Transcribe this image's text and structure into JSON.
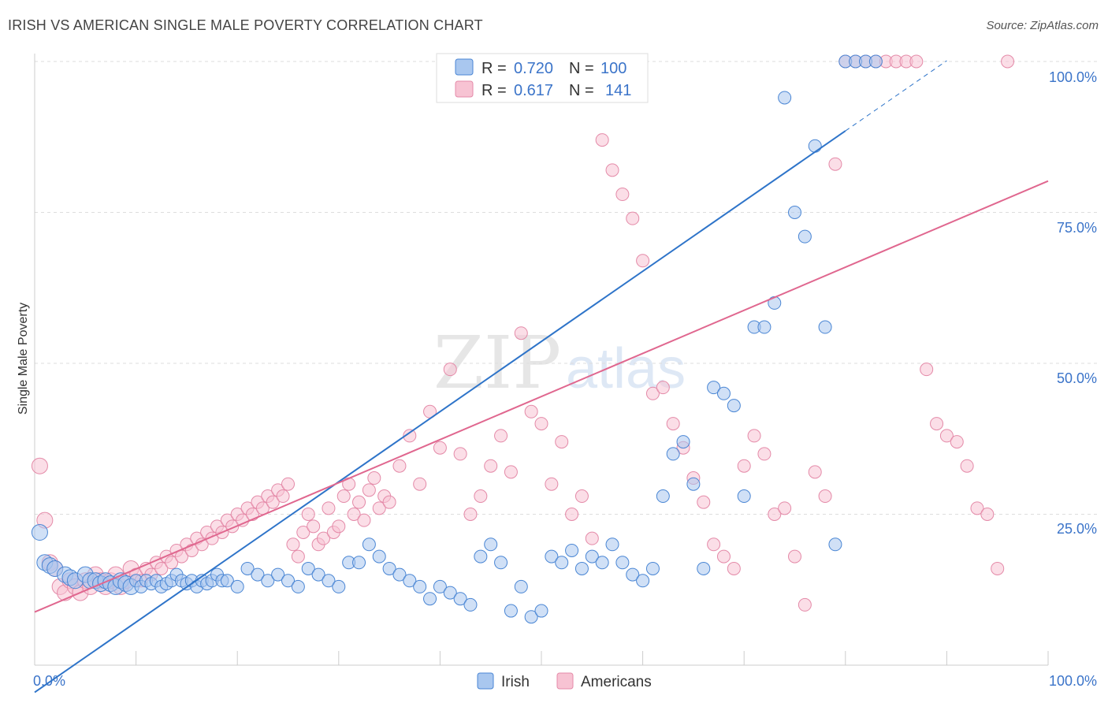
{
  "header": {
    "title": "IRISH VS AMERICAN SINGLE MALE POVERTY CORRELATION CHART",
    "source": "Source: ZipAtlas.com"
  },
  "watermark": {
    "zip": "ZIP",
    "atlas": "atlas"
  },
  "colors": {
    "irish_fill": "#a9c7ef",
    "irish_stroke": "#4a86d4",
    "irish_line": "#2e74c9",
    "american_fill": "#f7c3d3",
    "american_stroke": "#e48aa8",
    "american_line": "#e0678f",
    "tick": "#3b74c9",
    "grid": "#dddddd"
  },
  "stats": {
    "irish": {
      "r_label": "R =",
      "r": "0.720",
      "n_label": "N =",
      "n": "100"
    },
    "americans": {
      "r_label": "R =",
      "r": "0.617",
      "n_label": "N =",
      "n": "141"
    }
  },
  "chart_data": {
    "type": "scatter",
    "title": "IRISH VS AMERICAN SINGLE MALE POVERTY CORRELATION CHART",
    "xlabel": "",
    "ylabel": "Single Male Poverty",
    "xlim": [
      0,
      100
    ],
    "ylim": [
      0,
      100
    ],
    "x_tick_labels": [
      "0.0%",
      "100.0%"
    ],
    "y_tick_labels": [
      "25.0%",
      "50.0%",
      "75.0%",
      "100.0%"
    ],
    "y_ticks": [
      25,
      50,
      75,
      100
    ],
    "grid": true,
    "legend": [
      "Irish",
      "Americans"
    ],
    "series": [
      {
        "name": "Irish",
        "trend": {
          "x0": 0,
          "y0": -4.5,
          "x1": 80,
          "y1": 88.5,
          "dash_to_x": 90
        },
        "points": [
          [
            0.5,
            22
          ],
          [
            1,
            17
          ],
          [
            1.5,
            16.5
          ],
          [
            2,
            16
          ],
          [
            3,
            15
          ],
          [
            3.5,
            14.5
          ],
          [
            4,
            14
          ],
          [
            5,
            15
          ],
          [
            5.5,
            14
          ],
          [
            6,
            14
          ],
          [
            6.5,
            13.5
          ],
          [
            7,
            14
          ],
          [
            7.5,
            13.5
          ],
          [
            8,
            13
          ],
          [
            8.5,
            14
          ],
          [
            9,
            13.5
          ],
          [
            9.5,
            13
          ],
          [
            10,
            14
          ],
          [
            10.5,
            13
          ],
          [
            11,
            14
          ],
          [
            11.5,
            13.5
          ],
          [
            12,
            14
          ],
          [
            12.5,
            13
          ],
          [
            13,
            13.5
          ],
          [
            13.5,
            14
          ],
          [
            14,
            15
          ],
          [
            14.5,
            14
          ],
          [
            15,
            13.5
          ],
          [
            15.5,
            14
          ],
          [
            16,
            13
          ],
          [
            16.5,
            14
          ],
          [
            17,
            13.5
          ],
          [
            17.5,
            14
          ],
          [
            18,
            15
          ],
          [
            18.5,
            14
          ],
          [
            19,
            14
          ],
          [
            20,
            13
          ],
          [
            21,
            16
          ],
          [
            22,
            15
          ],
          [
            23,
            14
          ],
          [
            24,
            15
          ],
          [
            25,
            14
          ],
          [
            26,
            13
          ],
          [
            27,
            16
          ],
          [
            28,
            15
          ],
          [
            29,
            14
          ],
          [
            30,
            13
          ],
          [
            31,
            17
          ],
          [
            32,
            17
          ],
          [
            33,
            20
          ],
          [
            34,
            18
          ],
          [
            35,
            16
          ],
          [
            36,
            15
          ],
          [
            37,
            14
          ],
          [
            38,
            13
          ],
          [
            39,
            11
          ],
          [
            40,
            13
          ],
          [
            41,
            12
          ],
          [
            42,
            11
          ],
          [
            43,
            10
          ],
          [
            44,
            18
          ],
          [
            45,
            20
          ],
          [
            46,
            17
          ],
          [
            47,
            9
          ],
          [
            48,
            13
          ],
          [
            49,
            8
          ],
          [
            50,
            9
          ],
          [
            51,
            18
          ],
          [
            52,
            17
          ],
          [
            53,
            19
          ],
          [
            54,
            16
          ],
          [
            55,
            18
          ],
          [
            56,
            17
          ],
          [
            57,
            20
          ],
          [
            58,
            17
          ],
          [
            59,
            15
          ],
          [
            60,
            14
          ],
          [
            61,
            16
          ],
          [
            62,
            28
          ],
          [
            63,
            35
          ],
          [
            64,
            37
          ],
          [
            65,
            30
          ],
          [
            66,
            16
          ],
          [
            67,
            46
          ],
          [
            68,
            45
          ],
          [
            69,
            43
          ],
          [
            70,
            28
          ],
          [
            71,
            56
          ],
          [
            72,
            56
          ],
          [
            73,
            60
          ],
          [
            74,
            94
          ],
          [
            75,
            75
          ],
          [
            76,
            71
          ],
          [
            77,
            86
          ],
          [
            78,
            56
          ],
          [
            79,
            20
          ],
          [
            80,
            100
          ],
          [
            81,
            100
          ],
          [
            82,
            100
          ],
          [
            83,
            100
          ]
        ]
      },
      {
        "name": "Americans",
        "trend": {
          "x0": 0,
          "y0": 8.8,
          "x1": 100,
          "y1": 80.2
        },
        "points": [
          [
            0.5,
            33
          ],
          [
            1,
            24
          ],
          [
            1.5,
            17
          ],
          [
            2,
            16
          ],
          [
            2.5,
            13
          ],
          [
            3,
            12
          ],
          [
            3.5,
            14
          ],
          [
            4,
            13
          ],
          [
            4.5,
            12
          ],
          [
            5,
            14
          ],
          [
            5.5,
            13
          ],
          [
            6,
            15
          ],
          [
            6.5,
            14
          ],
          [
            7,
            13
          ],
          [
            7.5,
            14
          ],
          [
            8,
            15
          ],
          [
            8.5,
            13
          ],
          [
            9,
            14
          ],
          [
            9.5,
            16
          ],
          [
            10,
            15
          ],
          [
            10.5,
            14
          ],
          [
            11,
            16
          ],
          [
            11.5,
            15
          ],
          [
            12,
            17
          ],
          [
            12.5,
            16
          ],
          [
            13,
            18
          ],
          [
            13.5,
            17
          ],
          [
            14,
            19
          ],
          [
            14.5,
            18
          ],
          [
            15,
            20
          ],
          [
            15.5,
            19
          ],
          [
            16,
            21
          ],
          [
            16.5,
            20
          ],
          [
            17,
            22
          ],
          [
            17.5,
            21
          ],
          [
            18,
            23
          ],
          [
            18.5,
            22
          ],
          [
            19,
            24
          ],
          [
            19.5,
            23
          ],
          [
            20,
            25
          ],
          [
            20.5,
            24
          ],
          [
            21,
            26
          ],
          [
            21.5,
            25
          ],
          [
            22,
            27
          ],
          [
            22.5,
            26
          ],
          [
            23,
            28
          ],
          [
            23.5,
            27
          ],
          [
            24,
            29
          ],
          [
            24.5,
            28
          ],
          [
            25,
            30
          ],
          [
            25.5,
            20
          ],
          [
            26,
            18
          ],
          [
            26.5,
            22
          ],
          [
            27,
            25
          ],
          [
            27.5,
            23
          ],
          [
            28,
            20
          ],
          [
            28.5,
            21
          ],
          [
            29,
            26
          ],
          [
            29.5,
            22
          ],
          [
            30,
            23
          ],
          [
            30.5,
            28
          ],
          [
            31,
            30
          ],
          [
            31.5,
            25
          ],
          [
            32,
            27
          ],
          [
            32.5,
            24
          ],
          [
            33,
            29
          ],
          [
            33.5,
            31
          ],
          [
            34,
            26
          ],
          [
            34.5,
            28
          ],
          [
            35,
            27
          ],
          [
            36,
            33
          ],
          [
            37,
            38
          ],
          [
            38,
            30
          ],
          [
            39,
            42
          ],
          [
            40,
            36
          ],
          [
            41,
            49
          ],
          [
            42,
            35
          ],
          [
            43,
            25
          ],
          [
            44,
            28
          ],
          [
            45,
            33
          ],
          [
            46,
            38
          ],
          [
            47,
            32
          ],
          [
            48,
            55
          ],
          [
            49,
            42
          ],
          [
            50,
            40
          ],
          [
            51,
            30
          ],
          [
            52,
            37
          ],
          [
            53,
            25
          ],
          [
            54,
            28
          ],
          [
            55,
            21
          ],
          [
            56,
            87
          ],
          [
            57,
            82
          ],
          [
            58,
            78
          ],
          [
            59,
            74
          ],
          [
            60,
            67
          ],
          [
            61,
            45
          ],
          [
            62,
            46
          ],
          [
            63,
            40
          ],
          [
            64,
            36
          ],
          [
            65,
            31
          ],
          [
            66,
            27
          ],
          [
            67,
            20
          ],
          [
            68,
            18
          ],
          [
            69,
            16
          ],
          [
            70,
            33
          ],
          [
            71,
            38
          ],
          [
            72,
            35
          ],
          [
            73,
            25
          ],
          [
            74,
            26
          ],
          [
            75,
            18
          ],
          [
            76,
            10
          ],
          [
            77,
            32
          ],
          [
            78,
            28
          ],
          [
            79,
            83
          ],
          [
            80,
            100
          ],
          [
            81,
            100
          ],
          [
            82,
            100
          ],
          [
            83,
            100
          ],
          [
            84,
            100
          ],
          [
            85,
            100
          ],
          [
            86,
            100
          ],
          [
            87,
            100
          ],
          [
            88,
            49
          ],
          [
            89,
            40
          ],
          [
            90,
            38
          ],
          [
            91,
            37
          ],
          [
            92,
            33
          ],
          [
            93,
            26
          ],
          [
            94,
            25
          ],
          [
            95,
            16
          ],
          [
            96,
            100
          ]
        ]
      }
    ]
  },
  "legend": {
    "irish": "Irish",
    "americans": "Americans"
  }
}
